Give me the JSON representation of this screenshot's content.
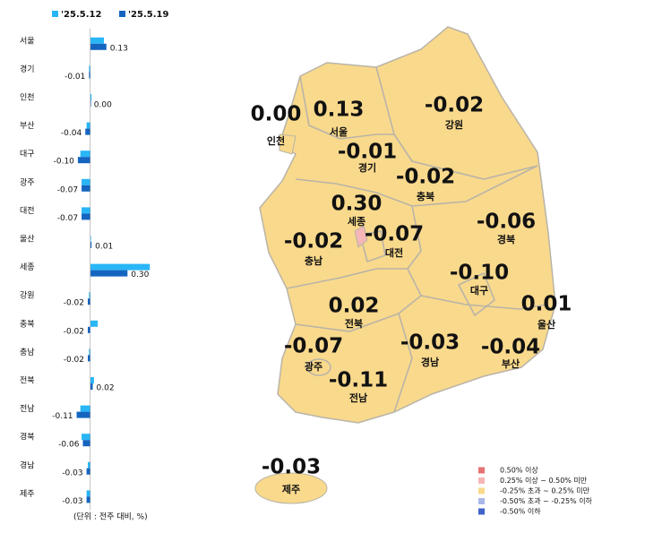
{
  "chart_data": {
    "type": "bar",
    "orientation": "horizontal",
    "categories": [
      "서울",
      "경기",
      "인천",
      "부산",
      "대구",
      "광주",
      "대전",
      "울산",
      "세종",
      "강원",
      "충북",
      "충남",
      "전북",
      "전남",
      "경북",
      "경남",
      "제주"
    ],
    "series": [
      {
        "name": "'25.5.12",
        "color": "#29b6f6",
        "values": [
          0.11,
          -0.01,
          0.01,
          -0.03,
          -0.08,
          -0.07,
          -0.07,
          0.0,
          0.48,
          -0.01,
          0.06,
          -0.01,
          0.03,
          -0.08,
          -0.07,
          -0.02,
          -0.03
        ]
      },
      {
        "name": "'25.5.19",
        "color": "#1565c0",
        "values": [
          0.13,
          -0.01,
          0.0,
          -0.04,
          -0.1,
          -0.07,
          -0.07,
          0.01,
          0.3,
          -0.02,
          -0.02,
          -0.02,
          0.02,
          -0.11,
          -0.06,
          -0.03,
          -0.03
        ],
        "value_labels": [
          "0.13",
          "-0.01",
          "0.00",
          "-0.04",
          "-0.10",
          "-0.07",
          "-0.07",
          "0.01",
          "0.30",
          "-0.02",
          "-0.02",
          "-0.02",
          "0.02",
          "-0.11",
          "-0.06",
          "-0.03",
          "-0.03"
        ]
      }
    ],
    "xlim": [
      -0.15,
      0.5
    ],
    "note": "(단위 : 전주 대비, %)"
  },
  "map": {
    "legend": [
      {
        "label": "0.50% 이상",
        "color": "#e57373"
      },
      {
        "label": "0.25% 이상 ~ 0.50% 미만",
        "color": "#f4b6b6"
      },
      {
        "label": "-0.25% 초과 ~ 0.25% 미만",
        "color": "#f9d98c"
      },
      {
        "label": "-0.50% 초과 ~ -0.25% 이하",
        "color": "#aab8e8"
      },
      {
        "label": "-0.50% 이하",
        "color": "#3f63c9"
      }
    ]
  }
}
